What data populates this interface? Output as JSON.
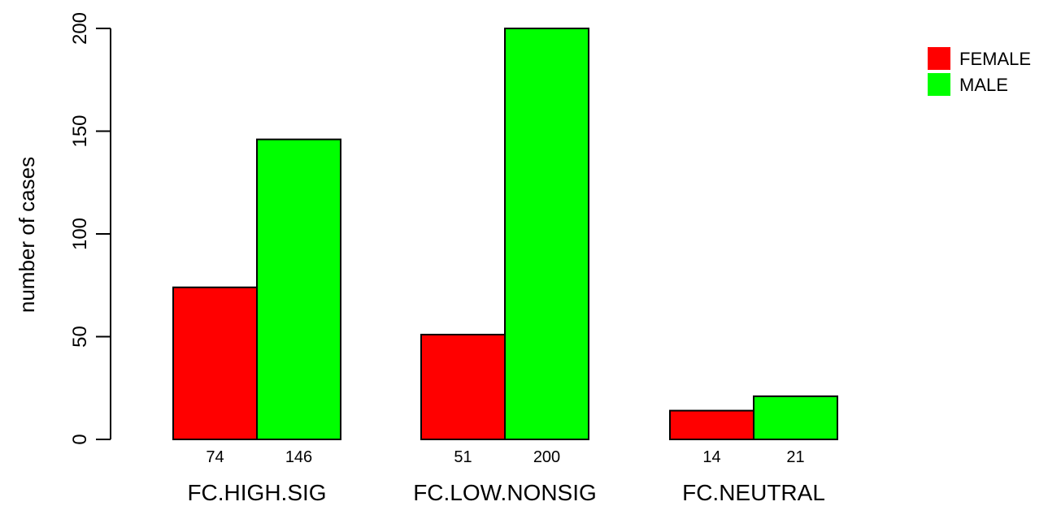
{
  "chart_data": {
    "type": "bar",
    "categories": [
      "FC.HIGH.SIG",
      "FC.LOW.NONSIG",
      "FC.NEUTRAL"
    ],
    "series": [
      {
        "name": "FEMALE",
        "color": "#ff0000",
        "values": [
          74,
          51,
          14
        ]
      },
      {
        "name": "MALE",
        "color": "#00ff00",
        "values": [
          146,
          200,
          21
        ]
      }
    ],
    "value_labels": [
      [
        "74",
        "146"
      ],
      [
        "51",
        "200"
      ],
      [
        "14",
        "21"
      ]
    ],
    "ylabel": "number of cases",
    "xlabel": "",
    "title": "",
    "ylim": [
      0,
      200
    ],
    "yticks": [
      "0",
      "50",
      "100",
      "150",
      "200"
    ],
    "legend_position": "top-right",
    "grid": false
  }
}
